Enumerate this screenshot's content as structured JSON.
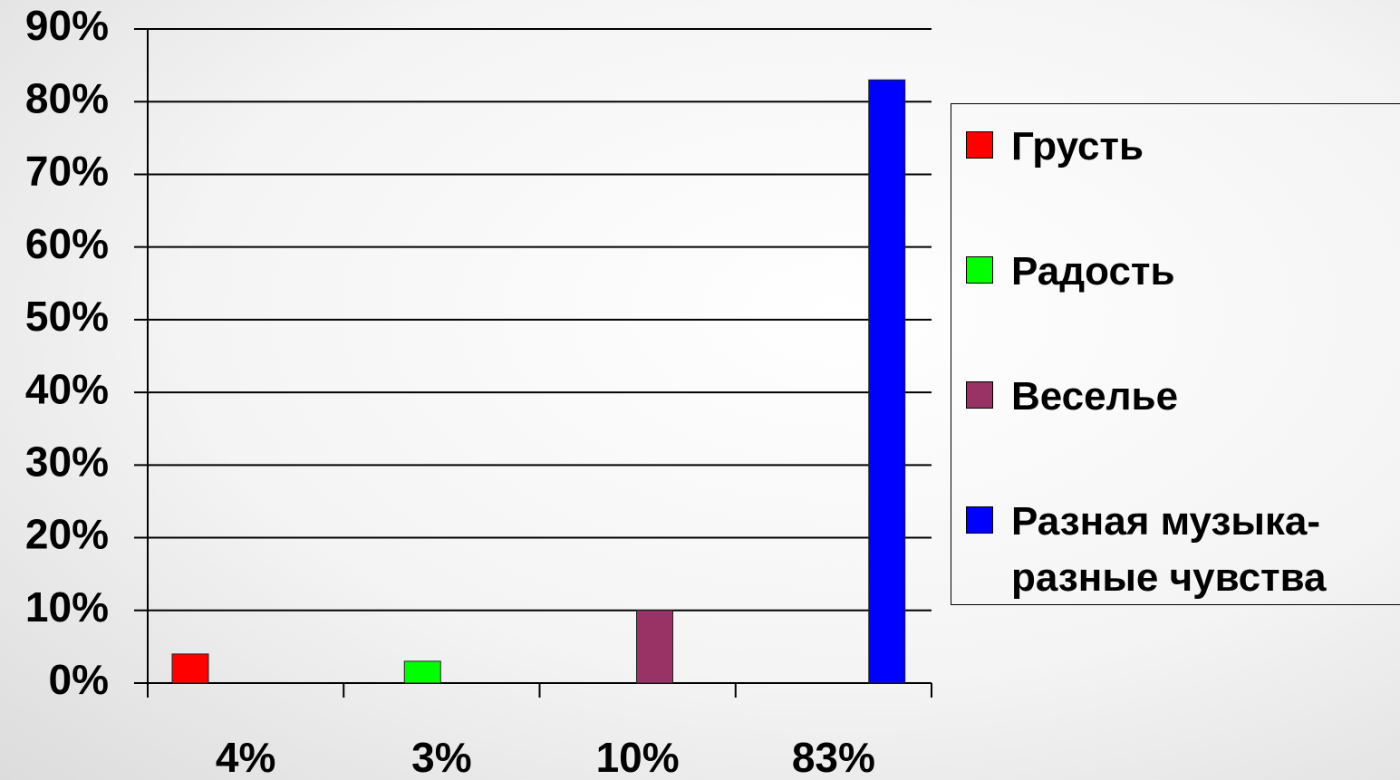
{
  "chart_data": {
    "type": "bar",
    "categories": [
      "4%",
      "3%",
      "10%",
      "83%"
    ],
    "series": [
      {
        "name": "Грусть",
        "color": "#ff0000",
        "values": [
          4,
          null,
          null,
          null
        ]
      },
      {
        "name": "Радость",
        "color": "#00ff00",
        "values": [
          null,
          3,
          null,
          null
        ]
      },
      {
        "name": "Веселье",
        "color": "#993366",
        "values": [
          null,
          null,
          10,
          null
        ]
      },
      {
        "name": "Разная музыка-разные чувства",
        "color": "#0000ff",
        "values": [
          null,
          null,
          null,
          83
        ]
      }
    ],
    "ylim": [
      0,
      90
    ],
    "yticks": [
      {
        "value": 0,
        "label": "0%"
      },
      {
        "value": 10,
        "label": "10%"
      },
      {
        "value": 20,
        "label": "20%"
      },
      {
        "value": 30,
        "label": "30%"
      },
      {
        "value": 40,
        "label": "40%"
      },
      {
        "value": 50,
        "label": "50%"
      },
      {
        "value": 60,
        "label": "60%"
      },
      {
        "value": 70,
        "label": "70%"
      },
      {
        "value": 80,
        "label": "80%"
      },
      {
        "value": 90,
        "label": "90%"
      }
    ],
    "grid": true,
    "legend": "right"
  }
}
